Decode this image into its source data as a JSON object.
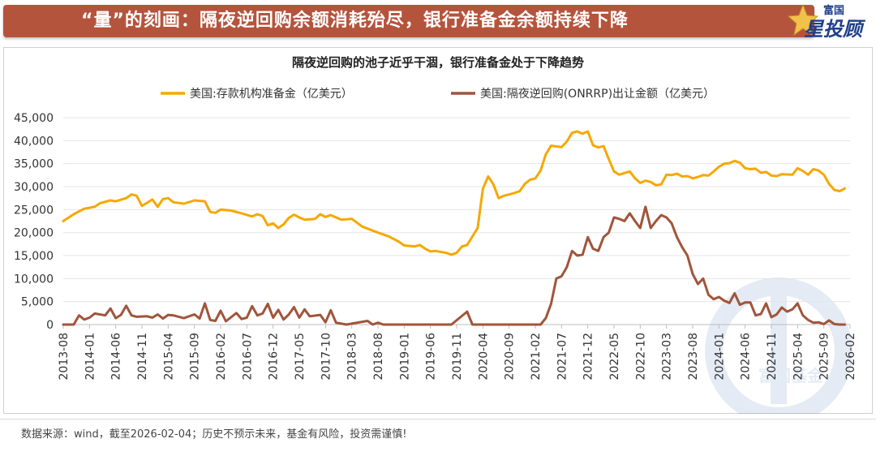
{
  "banner": {
    "title": "“量”的刻画：隔夜逆回购余额消耗殆尽，银行准备金余额持续下降"
  },
  "logo": {
    "small": "富国",
    "big": "星投顾"
  },
  "watermark": "富国基金",
  "footer": {
    "source": "数据来源：wind，截至2026-02-04；历史不预示未来，基金有风险，投资需谨慎!"
  },
  "colors": {
    "reserves": "#f5a800",
    "rrp": "#a0553b",
    "banner": "#b5543c",
    "logo": "#1f3f8a"
  },
  "chart_data": {
    "type": "line",
    "title": "隔夜逆回购的池子近乎干涸，银行准备金处于下降趋势",
    "ylim": [
      0,
      45000
    ],
    "yticks": [
      "0",
      "5,000",
      "10,000",
      "15,000",
      "20,000",
      "25,000",
      "30,000",
      "35,000",
      "40,000",
      "45,000"
    ],
    "xticks": [
      "2013-08",
      "2014-01",
      "2014-06",
      "2014-11",
      "2015-04",
      "2015-09",
      "2016-02",
      "2016-07",
      "2016-12",
      "2017-05",
      "2017-10",
      "2018-03",
      "2018-08",
      "2019-01",
      "2019-06",
      "2019-11",
      "2020-04",
      "2020-09",
      "2021-02",
      "2021-07",
      "2021-12",
      "2022-05",
      "2022-10",
      "2023-03",
      "2023-08",
      "2024-01",
      "2024-06",
      "2024-11",
      "2025-04",
      "2025-09",
      "2026-02"
    ],
    "legend_position": "top",
    "grid": "horizontal",
    "series": [
      {
        "name": "美国:存款机构准备金（亿美元）",
        "color": "#f5a800",
        "points": [
          [
            "2013-08",
            22500
          ],
          [
            "2013-10",
            24000
          ],
          [
            "2013-12",
            25200
          ],
          [
            "2014-02",
            25600
          ],
          [
            "2014-03",
            26400
          ],
          [
            "2014-05",
            27000
          ],
          [
            "2014-06",
            26800
          ],
          [
            "2014-08",
            27500
          ],
          [
            "2014-09",
            28300
          ],
          [
            "2014-10",
            28000
          ],
          [
            "2014-11",
            25800
          ],
          [
            "2015-01",
            27200
          ],
          [
            "2015-02",
            25600
          ],
          [
            "2015-03",
            27300
          ],
          [
            "2015-04",
            27500
          ],
          [
            "2015-05",
            26600
          ],
          [
            "2015-07",
            26300
          ],
          [
            "2015-09",
            27000
          ],
          [
            "2015-11",
            26800
          ],
          [
            "2015-12",
            24500
          ],
          [
            "2016-01",
            24300
          ],
          [
            "2016-02",
            25000
          ],
          [
            "2016-04",
            24800
          ],
          [
            "2016-06",
            24200
          ],
          [
            "2016-08",
            23500
          ],
          [
            "2016-09",
            24000
          ],
          [
            "2016-10",
            23600
          ],
          [
            "2016-11",
            21600
          ],
          [
            "2016-12",
            22000
          ],
          [
            "2017-01",
            21000
          ],
          [
            "2017-02",
            21800
          ],
          [
            "2017-03",
            23200
          ],
          [
            "2017-04",
            23900
          ],
          [
            "2017-05",
            23300
          ],
          [
            "2017-06",
            22800
          ],
          [
            "2017-08",
            23000
          ],
          [
            "2017-09",
            24000
          ],
          [
            "2017-10",
            23400
          ],
          [
            "2017-11",
            23800
          ],
          [
            "2018-01",
            22800
          ],
          [
            "2018-03",
            23000
          ],
          [
            "2018-05",
            21300
          ],
          [
            "2018-08",
            20000
          ],
          [
            "2018-10",
            19200
          ],
          [
            "2018-12",
            18000
          ],
          [
            "2019-01",
            17200
          ],
          [
            "2019-03",
            17000
          ],
          [
            "2019-04",
            17300
          ],
          [
            "2019-05",
            16500
          ],
          [
            "2019-06",
            15900
          ],
          [
            "2019-07",
            16000
          ],
          [
            "2019-09",
            15600
          ],
          [
            "2019-10",
            15200
          ],
          [
            "2019-11",
            15600
          ],
          [
            "2019-12",
            17000
          ],
          [
            "2020-01",
            17300
          ],
          [
            "2020-03",
            21000
          ],
          [
            "2020-04",
            29500
          ],
          [
            "2020-05",
            32200
          ],
          [
            "2020-06",
            30500
          ],
          [
            "2020-07",
            27500
          ],
          [
            "2020-08",
            28000
          ],
          [
            "2020-10",
            28600
          ],
          [
            "2020-11",
            29000
          ],
          [
            "2020-12",
            30600
          ],
          [
            "2021-01",
            31500
          ],
          [
            "2021-02",
            31800
          ],
          [
            "2021-03",
            33500
          ],
          [
            "2021-04",
            37000
          ],
          [
            "2021-05",
            38900
          ],
          [
            "2021-07",
            38600
          ],
          [
            "2021-08",
            39800
          ],
          [
            "2021-09",
            41700
          ],
          [
            "2021-10",
            42000
          ],
          [
            "2021-11",
            41500
          ],
          [
            "2021-12",
            42000
          ],
          [
            "2022-01",
            39000
          ],
          [
            "2022-02",
            38500
          ],
          [
            "2022-03",
            38800
          ],
          [
            "2022-04",
            36000
          ],
          [
            "2022-05",
            33300
          ],
          [
            "2022-06",
            32600
          ],
          [
            "2022-08",
            33300
          ],
          [
            "2022-09",
            31800
          ],
          [
            "2022-10",
            30800
          ],
          [
            "2022-11",
            31300
          ],
          [
            "2022-12",
            31000
          ],
          [
            "2023-01",
            30300
          ],
          [
            "2023-02",
            30500
          ],
          [
            "2023-03",
            32600
          ],
          [
            "2023-04",
            32500
          ],
          [
            "2023-05",
            32800
          ],
          [
            "2023-06",
            32200
          ],
          [
            "2023-07",
            32300
          ],
          [
            "2023-08",
            31800
          ],
          [
            "2023-09",
            32100
          ],
          [
            "2023-10",
            32500
          ],
          [
            "2023-11",
            32400
          ],
          [
            "2023-12",
            33300
          ],
          [
            "2024-01",
            34300
          ],
          [
            "2024-02",
            35000
          ],
          [
            "2024-03",
            35100
          ],
          [
            "2024-04",
            35600
          ],
          [
            "2024-05",
            35200
          ],
          [
            "2024-06",
            34000
          ],
          [
            "2024-07",
            33800
          ],
          [
            "2024-08",
            33900
          ],
          [
            "2024-09",
            33000
          ],
          [
            "2024-10",
            33200
          ],
          [
            "2024-11",
            32400
          ],
          [
            "2024-12",
            32300
          ],
          [
            "2025-01",
            32700
          ],
          [
            "2025-03",
            32600
          ],
          [
            "2025-04",
            34000
          ],
          [
            "2025-05",
            33400
          ],
          [
            "2025-06",
            32600
          ],
          [
            "2025-07",
            33800
          ],
          [
            "2025-08",
            33500
          ],
          [
            "2025-09",
            32600
          ],
          [
            "2025-10",
            30600
          ],
          [
            "2025-11",
            29300
          ],
          [
            "2025-12",
            29000
          ],
          [
            "2026-01",
            29600
          ]
        ]
      },
      {
        "name": "美国:隔夜逆回购(ONRRP)出让金额（亿美元）",
        "color": "#a0553b",
        "points": [
          [
            "2013-08",
            0
          ],
          [
            "2013-10",
            0
          ],
          [
            "2013-11",
            2000
          ],
          [
            "2013-12",
            1100
          ],
          [
            "2014-01",
            1500
          ],
          [
            "2014-02",
            2400
          ],
          [
            "2014-04",
            2000
          ],
          [
            "2014-05",
            3500
          ],
          [
            "2014-06",
            1400
          ],
          [
            "2014-07",
            2100
          ],
          [
            "2014-08",
            4100
          ],
          [
            "2014-09",
            2000
          ],
          [
            "2014-10",
            1700
          ],
          [
            "2014-12",
            1800
          ],
          [
            "2015-01",
            1500
          ],
          [
            "2015-02",
            2200
          ],
          [
            "2015-03",
            1300
          ],
          [
            "2015-04",
            2100
          ],
          [
            "2015-05",
            2000
          ],
          [
            "2015-06",
            1700
          ],
          [
            "2015-07",
            1400
          ],
          [
            "2015-09",
            2200
          ],
          [
            "2015-10",
            1300
          ],
          [
            "2015-11",
            4600
          ],
          [
            "2015-12",
            1000
          ],
          [
            "2016-01",
            800
          ],
          [
            "2016-02",
            3000
          ],
          [
            "2016-03",
            700
          ],
          [
            "2016-05",
            2500
          ],
          [
            "2016-06",
            1200
          ],
          [
            "2016-07",
            1500
          ],
          [
            "2016-08",
            4000
          ],
          [
            "2016-09",
            2000
          ],
          [
            "2016-10",
            2400
          ],
          [
            "2016-11",
            4500
          ],
          [
            "2016-12",
            1500
          ],
          [
            "2017-01",
            3200
          ],
          [
            "2017-02",
            1100
          ],
          [
            "2017-03",
            2200
          ],
          [
            "2017-04",
            3800
          ],
          [
            "2017-05",
            1500
          ],
          [
            "2017-06",
            3300
          ],
          [
            "2017-07",
            1800
          ],
          [
            "2017-09",
            2100
          ],
          [
            "2017-10",
            500
          ],
          [
            "2017-11",
            3100
          ],
          [
            "2017-12",
            400
          ],
          [
            "2018-02",
            0
          ],
          [
            "2018-06",
            800
          ],
          [
            "2018-07",
            0
          ],
          [
            "2018-08",
            400
          ],
          [
            "2018-09",
            0
          ],
          [
            "2019-06",
            0
          ],
          [
            "2019-10",
            0
          ],
          [
            "2020-01",
            2800
          ],
          [
            "2020-02",
            0
          ],
          [
            "2021-03",
            0
          ],
          [
            "2021-04",
            1400
          ],
          [
            "2021-05",
            4500
          ],
          [
            "2021-06",
            10000
          ],
          [
            "2021-07",
            10500
          ],
          [
            "2021-08",
            12500
          ],
          [
            "2021-09",
            16000
          ],
          [
            "2021-10",
            15000
          ],
          [
            "2021-11",
            15200
          ],
          [
            "2021-12",
            19000
          ],
          [
            "2022-01",
            16500
          ],
          [
            "2022-02",
            16000
          ],
          [
            "2022-03",
            19000
          ],
          [
            "2022-04",
            20000
          ],
          [
            "2022-05",
            23300
          ],
          [
            "2022-06",
            23000
          ],
          [
            "2022-07",
            22500
          ],
          [
            "2022-08",
            24200
          ],
          [
            "2022-09",
            22500
          ],
          [
            "2022-10",
            21000
          ],
          [
            "2022-11",
            25600
          ],
          [
            "2022-12",
            21000
          ],
          [
            "2023-01",
            22500
          ],
          [
            "2023-02",
            23800
          ],
          [
            "2023-03",
            23300
          ],
          [
            "2023-04",
            22000
          ],
          [
            "2023-05",
            19000
          ],
          [
            "2023-06",
            16800
          ],
          [
            "2023-07",
            15000
          ],
          [
            "2023-08",
            11000
          ],
          [
            "2023-09",
            8800
          ],
          [
            "2023-10",
            10000
          ],
          [
            "2023-11",
            6500
          ],
          [
            "2023-12",
            5500
          ],
          [
            "2024-01",
            6000
          ],
          [
            "2024-02",
            5200
          ],
          [
            "2024-03",
            4700
          ],
          [
            "2024-04",
            6800
          ],
          [
            "2024-05",
            4300
          ],
          [
            "2024-06",
            4800
          ],
          [
            "2024-07",
            4800
          ],
          [
            "2024-08",
            2000
          ],
          [
            "2024-09",
            2300
          ],
          [
            "2024-10",
            4600
          ],
          [
            "2024-11",
            1600
          ],
          [
            "2024-12",
            2200
          ],
          [
            "2025-01",
            3700
          ],
          [
            "2025-02",
            2800
          ],
          [
            "2025-03",
            3300
          ],
          [
            "2025-04",
            4600
          ],
          [
            "2025-05",
            2000
          ],
          [
            "2025-06",
            1000
          ],
          [
            "2025-07",
            400
          ],
          [
            "2025-08",
            500
          ],
          [
            "2025-09",
            100
          ],
          [
            "2025-10",
            900
          ],
          [
            "2025-11",
            100
          ],
          [
            "2025-12",
            0
          ],
          [
            "2026-01",
            0
          ]
        ]
      }
    ]
  }
}
